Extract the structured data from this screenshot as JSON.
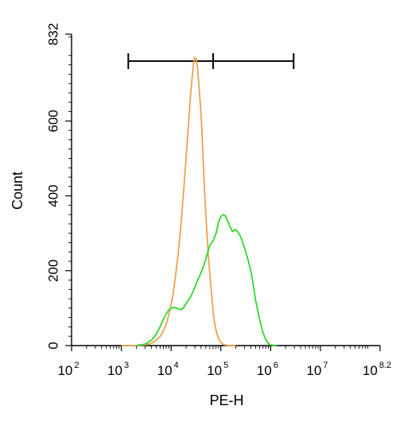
{
  "chart_data": {
    "type": "line",
    "title_visible": "",
    "title_parts": [
      {
        "text": "",
        "color": "#000000"
      }
    ],
    "xlabel": "PE-H",
    "ylabel": "Count",
    "x_scale": "log",
    "x_range": [
      100,
      158489319
    ],
    "x_ticks": [
      {
        "base": "10",
        "exp": "2",
        "value": 100
      },
      {
        "base": "10",
        "exp": "3",
        "value": 1000
      },
      {
        "base": "10",
        "exp": "4",
        "value": 10000
      },
      {
        "base": "10",
        "exp": "5",
        "value": 100000
      },
      {
        "base": "10",
        "exp": "6",
        "value": 1000000
      },
      {
        "base": "10",
        "exp": "7",
        "value": 10000000
      },
      {
        "base": "10",
        "exp": "8.2",
        "value": 158489319
      }
    ],
    "ylim": [
      0,
      832
    ],
    "y_ticks": [
      {
        "label": "0",
        "value": 0
      },
      {
        "label": "200",
        "value": 200
      },
      {
        "label": "400",
        "value": 400
      },
      {
        "label": "600",
        "value": 600
      },
      {
        "label": "832",
        "value": 832
      }
    ],
    "gate": {
      "start": 1380,
      "mid": 70000,
      "end": 2900000,
      "y": 760
    },
    "grid": false,
    "legend": "none",
    "series": [
      {
        "color": "#f0a050",
        "x": [
          1000,
          2000,
          3000,
          4000,
          5000,
          6000,
          7000,
          8000,
          9000,
          10000,
          11000,
          12000,
          14000,
          16000,
          18000,
          20000,
          22000,
          25000,
          28000,
          30000,
          32000,
          34000,
          36000,
          38000,
          40000,
          42000,
          45000,
          48000,
          52000,
          56000,
          60000,
          65000,
          70000,
          75000,
          80000,
          90000,
          100000,
          110000,
          120000,
          130000,
          150000,
          200000
        ],
        "y": [
          0,
          0,
          2,
          6,
          14,
          24,
          40,
          58,
          82,
          110,
          140,
          175,
          250,
          330,
          420,
          500,
          580,
          680,
          750,
          770,
          765,
          740,
          700,
          660,
          620,
          560,
          470,
          390,
          310,
          240,
          190,
          140,
          90,
          60,
          40,
          18,
          8,
          4,
          2,
          1,
          0,
          0
        ]
      },
      {
        "color": "#30d830",
        "x": [
          2000,
          3000,
          4000,
          5000,
          6000,
          7000,
          8000,
          9000,
          10000,
          12000,
          14000,
          16000,
          18000,
          20000,
          25000,
          30000,
          35000,
          40000,
          45000,
          50000,
          55000,
          60000,
          70000,
          80000,
          90000,
          100000,
          110000,
          120000,
          130000,
          150000,
          170000,
          200000,
          230000,
          260000,
          300000,
          350000,
          400000,
          450000,
          500000,
          600000,
          700000,
          800000,
          900000,
          1000000,
          1300000
        ],
        "y": [
          0,
          4,
          14,
          30,
          50,
          70,
          85,
          95,
          100,
          102,
          98,
          96,
          102,
          112,
          132,
          155,
          178,
          195,
          212,
          232,
          252,
          268,
          280,
          300,
          330,
          345,
          350,
          348,
          340,
          320,
          305,
          310,
          300,
          285,
          260,
          230,
          200,
          160,
          120,
          70,
          35,
          15,
          6,
          2,
          0
        ]
      }
    ]
  }
}
